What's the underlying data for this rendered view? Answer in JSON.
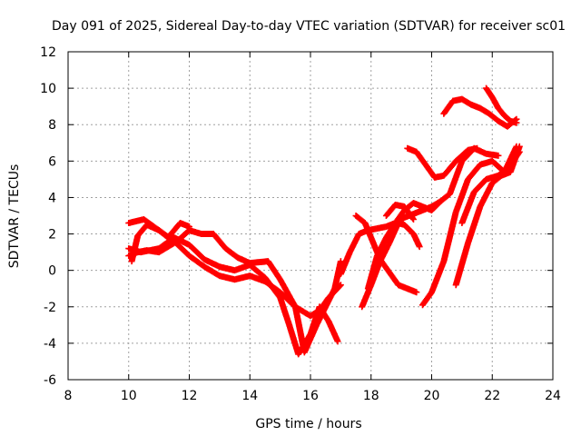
{
  "chart_data": {
    "type": "scatter",
    "title": "Day 091 of 2025, Sidereal Day-to-day VTEC variation (SDTVAR) for receiver sc01",
    "xlabel": "GPS time / hours",
    "ylabel": "SDTVAR / TECUs",
    "xlim": [
      8,
      24
    ],
    "ylim": [
      -6,
      12
    ],
    "xticks": [
      8,
      10,
      12,
      14,
      16,
      18,
      20,
      22,
      24
    ],
    "yticks": [
      -6,
      -4,
      -2,
      0,
      2,
      4,
      6,
      8,
      10,
      12
    ],
    "grid": true,
    "marker": "+",
    "series": [
      {
        "name": "track-1",
        "color": "#ff0000",
        "x": [
          10.0,
          10.5,
          11.0,
          11.5,
          12.0,
          12.5,
          13.0,
          13.5,
          14.0,
          14.5,
          15.0,
          15.5,
          16.0,
          16.3,
          16.6,
          17.0
        ],
        "y": [
          2.6,
          2.8,
          2.2,
          1.6,
          0.8,
          0.2,
          -0.3,
          -0.5,
          -0.3,
          -0.6,
          -1.2,
          -2.0,
          -2.5,
          -2.2,
          -1.5,
          -0.8
        ]
      },
      {
        "name": "track-2",
        "color": "#ff0000",
        "x": [
          10.0,
          10.4,
          11.0,
          11.5,
          12.0,
          12.5,
          13.0,
          13.5,
          14.0,
          14.5,
          15.0,
          15.3,
          15.6,
          16.0,
          16.3,
          16.6,
          16.9
        ],
        "y": [
          1.2,
          1.0,
          1.2,
          1.8,
          1.4,
          0.6,
          0.2,
          0.0,
          0.3,
          -0.4,
          -1.5,
          -3.0,
          -4.6,
          -3.5,
          -2.0,
          -2.8,
          -3.9
        ]
      },
      {
        "name": "track-3",
        "color": "#ff0000",
        "x": [
          10.0,
          10.3,
          10.6,
          11.0,
          11.3,
          11.6,
          12.0,
          12.4,
          12.8,
          13.2,
          13.6,
          14.0,
          14.6,
          15.0,
          15.5,
          15.8,
          16.2,
          16.5,
          16.8,
          17.0
        ],
        "y": [
          0.8,
          1.0,
          1.1,
          1.0,
          1.3,
          1.6,
          2.2,
          2.0,
          2.0,
          1.2,
          0.7,
          0.4,
          0.5,
          -0.5,
          -2.0,
          -4.5,
          -3.0,
          -2.0,
          -1.0,
          0.5
        ]
      },
      {
        "name": "track-4",
        "color": "#ff0000",
        "x": [
          10.1,
          10.3,
          10.6,
          11.0,
          11.3,
          11.7,
          12.0
        ],
        "y": [
          0.5,
          1.9,
          2.5,
          2.2,
          1.8,
          2.6,
          2.4
        ]
      },
      {
        "name": "track-5",
        "color": "#ff0000",
        "x": [
          17.0,
          17.3,
          17.6,
          17.9,
          18.2,
          18.5,
          18.8,
          19.1,
          19.4,
          19.7,
          20.0,
          20.3,
          20.6,
          21.0,
          21.4,
          21.8,
          22.2
        ],
        "y": [
          -0.2,
          1.0,
          2.0,
          2.2,
          2.3,
          2.4,
          2.6,
          2.9,
          3.1,
          3.3,
          3.5,
          3.8,
          4.2,
          6.0,
          6.7,
          6.4,
          6.3
        ]
      },
      {
        "name": "track-6",
        "color": "#ff0000",
        "x": [
          17.5,
          17.8,
          18.0,
          18.3,
          18.6,
          18.9,
          19.2,
          19.5
        ],
        "y": [
          3.0,
          2.6,
          1.8,
          0.6,
          -0.1,
          -0.8,
          -1.0,
          -1.2
        ]
      },
      {
        "name": "track-7",
        "color": "#ff0000",
        "x": [
          17.7,
          18.0,
          18.3,
          18.6,
          18.9,
          19.1,
          19.4,
          19.6
        ],
        "y": [
          -2.0,
          -0.8,
          0.5,
          1.5,
          2.6,
          2.5,
          2.0,
          1.3
        ]
      },
      {
        "name": "track-8",
        "color": "#ff0000",
        "x": [
          17.9,
          18.2,
          18.5,
          18.8,
          19.1,
          19.4,
          19.7,
          20.0,
          20.3
        ],
        "y": [
          -1.0,
          0.8,
          1.8,
          2.6,
          3.3,
          3.7,
          3.5,
          3.3,
          3.8
        ]
      },
      {
        "name": "track-9",
        "color": "#ff0000",
        "x": [
          18.5,
          18.8,
          19.1,
          19.4
        ],
        "y": [
          3.0,
          3.6,
          3.5,
          2.8
        ]
      },
      {
        "name": "track-10",
        "color": "#ff0000",
        "x": [
          19.2,
          19.5,
          19.8,
          20.1,
          20.4,
          20.8,
          21.2,
          21.5
        ],
        "y": [
          6.7,
          6.5,
          5.8,
          5.1,
          5.2,
          6.0,
          6.6,
          6.7
        ]
      },
      {
        "name": "track-11",
        "color": "#ff0000",
        "x": [
          19.7,
          20.0,
          20.4,
          20.8,
          21.2,
          21.6,
          22.0,
          22.4,
          22.8
        ],
        "y": [
          -1.9,
          -1.2,
          0.5,
          3.2,
          5.0,
          5.8,
          6.0,
          5.4,
          6.8
        ]
      },
      {
        "name": "track-12",
        "color": "#ff0000",
        "x": [
          20.4,
          20.7,
          21.0,
          21.3,
          21.6,
          21.9,
          22.2,
          22.5,
          22.8
        ],
        "y": [
          8.6,
          9.3,
          9.4,
          9.1,
          8.9,
          8.6,
          8.2,
          7.9,
          8.3
        ]
      },
      {
        "name": "track-13",
        "color": "#ff0000",
        "x": [
          21.8,
          22.0,
          22.2,
          22.4,
          22.6,
          22.8
        ],
        "y": [
          10.0,
          9.5,
          8.9,
          8.5,
          8.2,
          8.1
        ]
      },
      {
        "name": "track-14",
        "color": "#ff0000",
        "x": [
          20.8,
          21.2,
          21.6,
          22.0,
          22.3,
          22.6,
          22.9
        ],
        "y": [
          -0.8,
          1.5,
          3.5,
          4.8,
          5.2,
          5.4,
          6.8
        ]
      },
      {
        "name": "track-15",
        "color": "#ff0000",
        "x": [
          21.0,
          21.4,
          21.8,
          22.2,
          22.6,
          22.9
        ],
        "y": [
          2.6,
          4.3,
          5.0,
          5.2,
          5.8,
          6.5
        ]
      }
    ]
  }
}
